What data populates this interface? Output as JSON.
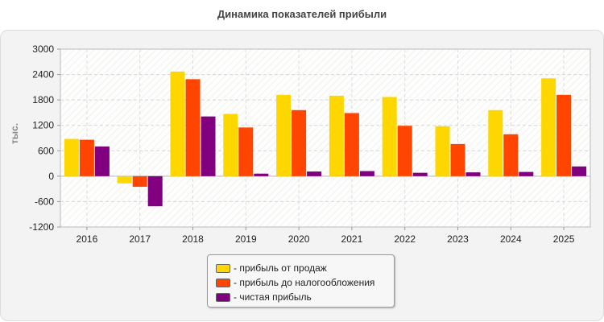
{
  "chart_data": {
    "type": "bar",
    "title": "Динамика показателей прибыли",
    "ylabel": "тыс.",
    "xlabel": "",
    "ylim": [
      -1200,
      3000
    ],
    "yticks": [
      3000,
      2400,
      1800,
      1200,
      600,
      0,
      -600,
      -1200
    ],
    "categories": [
      "2016",
      "2017",
      "2018",
      "2019",
      "2020",
      "2021",
      "2022",
      "2023",
      "2024",
      "2025"
    ],
    "grid": true,
    "legend_position": "bottom-center",
    "series": [
      {
        "name": "прибыль от продаж",
        "color": "#FFD700",
        "values": [
          880,
          -170,
          2470,
          1470,
          1920,
          1900,
          1870,
          1180,
          1560,
          2310
        ]
      },
      {
        "name": "прибыль до налогообложения",
        "color": "#FF4500",
        "values": [
          860,
          -250,
          2290,
          1150,
          1560,
          1490,
          1190,
          760,
          990,
          1920
        ]
      },
      {
        "name": "чистая прибыль",
        "color": "#800080",
        "values": [
          700,
          -710,
          1410,
          60,
          110,
          120,
          80,
          90,
          100,
          230
        ]
      }
    ]
  },
  "legend": {
    "items": [
      {
        "label": "- прибыль от продаж",
        "color": "#FFD700"
      },
      {
        "label": "- прибыль до налогообложения",
        "color": "#FF4500"
      },
      {
        "label": "- чистая прибыль",
        "color": "#800080"
      }
    ]
  }
}
